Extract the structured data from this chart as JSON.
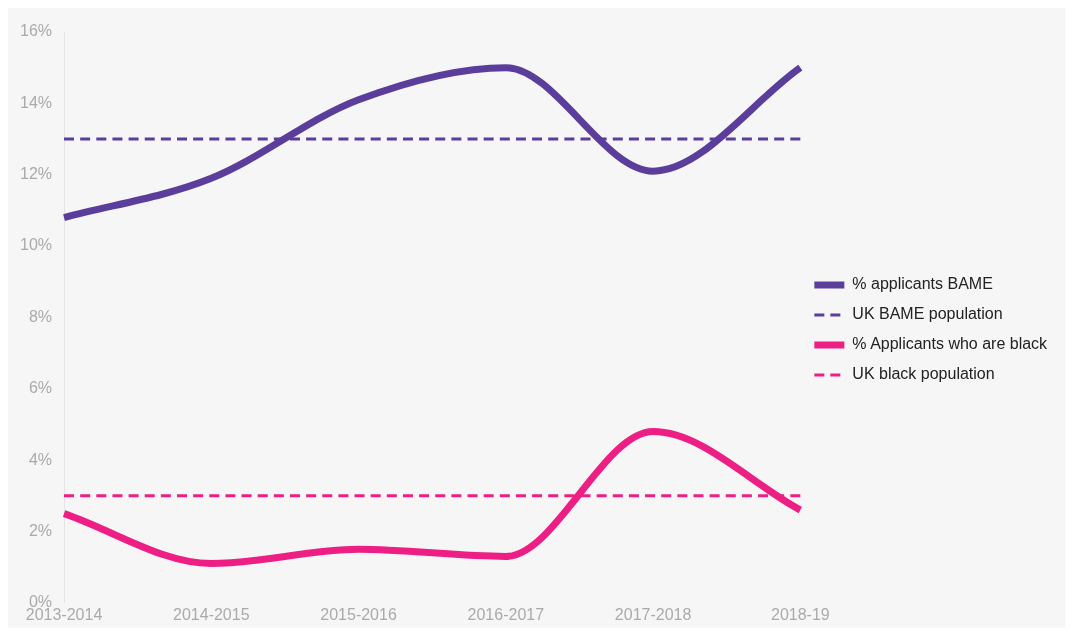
{
  "chart_data": {
    "type": "line",
    "categories": [
      "2013-2014",
      "2014-2015",
      "2015-2016",
      "2016-2017",
      "2017-2018",
      "2018-19"
    ],
    "series": [
      {
        "name": "% applicants BAME",
        "color": "#5b3d9c",
        "values": [
          10.8,
          11.9,
          14.1,
          15.0,
          12.1,
          15.0
        ]
      },
      {
        "name": "UK BAME population",
        "color": "#5b3d9c",
        "values": [
          13,
          13,
          13,
          13,
          13,
          13
        ],
        "line_style": "dashed"
      },
      {
        "name": "% Applicants who are black",
        "color": "#ee1f84",
        "values": [
          2.5,
          1.1,
          1.5,
          1.3,
          4.8,
          2.6
        ]
      },
      {
        "name": "UK black population",
        "color": "#ee1f84",
        "values": [
          3,
          3,
          3,
          3,
          3,
          3
        ],
        "line_style": "dashed"
      }
    ],
    "ylim": [
      0,
      16
    ],
    "yticks": [
      {
        "value": 0,
        "label": "0%"
      },
      {
        "value": 2,
        "label": "2%"
      },
      {
        "value": 4,
        "label": "4%"
      },
      {
        "value": 6,
        "label": "6%"
      },
      {
        "value": 8,
        "label": "8%"
      },
      {
        "value": 10,
        "label": "10%"
      },
      {
        "value": 12,
        "label": "12%"
      },
      {
        "value": 14,
        "label": "14%"
      },
      {
        "value": 16,
        "label": "16%"
      }
    ],
    "grid": false,
    "legend": "right",
    "marker": "none",
    "line_style": "solid"
  }
}
